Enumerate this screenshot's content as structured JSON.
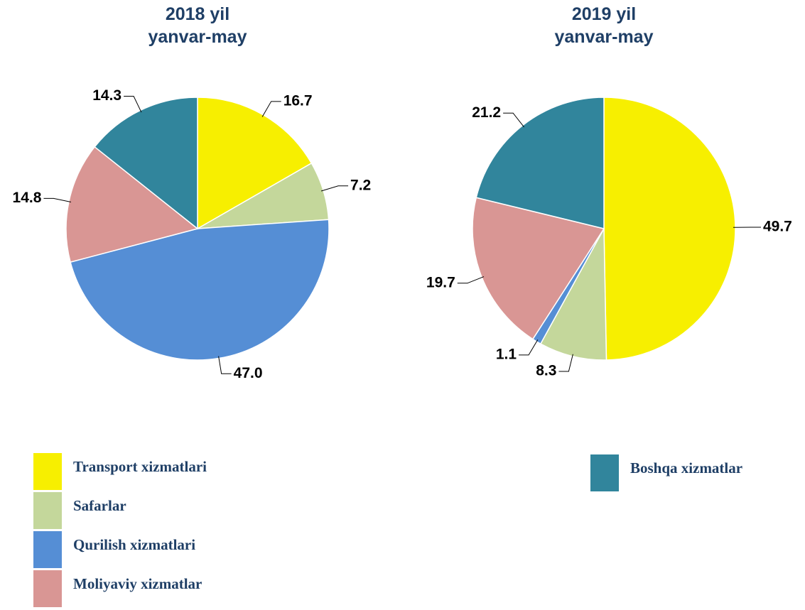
{
  "chart_data": [
    {
      "type": "pie",
      "title": "2018 yil",
      "subtitle": "yanvar-may",
      "categories": [
        "Transport xizmatlari",
        "Safarlar",
        "Qurilish xizmatlari",
        "Moliyaviy xizmatlar",
        "Boshqa xizmatlar"
      ],
      "values": [
        16.7,
        7.2,
        47.0,
        14.8,
        14.3
      ],
      "value_labels": [
        "16.7",
        "7.2",
        "47.0",
        "14.8",
        "14.3"
      ],
      "colors": [
        "#f7ef00",
        "#c4d79b",
        "#558ed5",
        "#d99694",
        "#31859c"
      ]
    },
    {
      "type": "pie",
      "title": "2019 yil",
      "subtitle": "yanvar-may",
      "categories": [
        "Transport xizmatlari",
        "Safarlar",
        "Qurilish xizmatlari",
        "Moliyaviy xizmatlar",
        "Boshqa xizmatlar"
      ],
      "values": [
        49.7,
        8.3,
        1.1,
        19.7,
        21.2
      ],
      "colors": [
        "#f7ef00",
        "#c4d79b",
        "#558ed5",
        "#d99694",
        "#31859c"
      ]
    }
  ]
}
